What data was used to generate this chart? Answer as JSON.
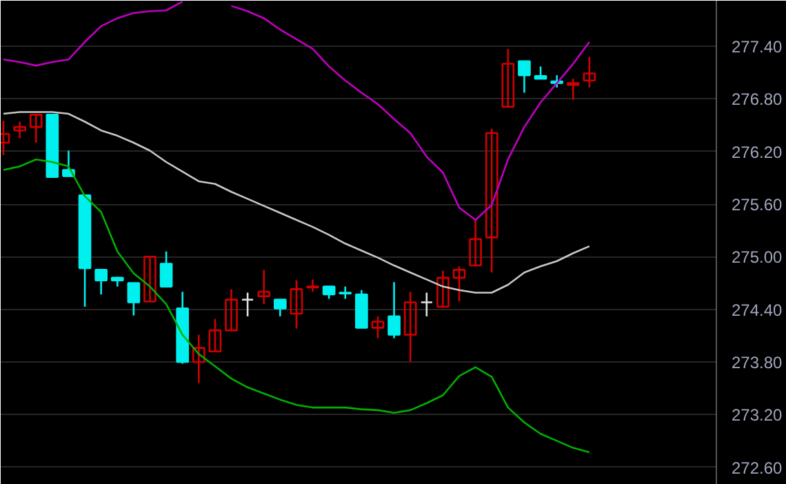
{
  "chart_data": {
    "type": "candlestick",
    "categories": [
      null,
      null,
      null,
      null,
      null,
      null,
      null,
      null,
      null,
      null,
      null,
      null,
      null,
      null,
      null,
      null,
      null,
      null,
      null,
      null,
      null,
      null,
      null,
      null,
      null,
      null,
      null,
      null,
      null,
      null,
      null,
      null,
      null,
      null,
      null,
      null,
      null
    ],
    "ohlc": [
      [
        276.3,
        276.55,
        276.16,
        276.4
      ],
      [
        276.44,
        276.54,
        276.35,
        276.48
      ],
      [
        276.48,
        276.63,
        276.3,
        276.62
      ],
      [
        276.62,
        276.62,
        275.91,
        275.91
      ],
      [
        275.99,
        276.21,
        275.92,
        275.92
      ],
      [
        275.7,
        275.7,
        274.43,
        274.87
      ],
      [
        274.85,
        274.85,
        274.57,
        274.73
      ],
      [
        274.76,
        274.77,
        274.66,
        274.73
      ],
      [
        274.7,
        274.7,
        274.33,
        274.48
      ],
      [
        274.49,
        275.0,
        274.49,
        275.0
      ],
      [
        274.92,
        275.06,
        274.65,
        274.66
      ],
      [
        274.41,
        274.6,
        273.78,
        273.8
      ],
      [
        273.8,
        274.11,
        273.56,
        273.96
      ],
      [
        273.92,
        274.29,
        273.92,
        274.16
      ],
      [
        274.16,
        274.63,
        274.16,
        274.51
      ],
      [
        274.51,
        274.59,
        274.32,
        274.51
      ],
      [
        274.55,
        274.85,
        274.46,
        274.6
      ],
      [
        274.51,
        274.51,
        274.32,
        274.41
      ],
      [
        274.35,
        274.73,
        274.18,
        274.63
      ],
      [
        274.65,
        274.74,
        274.6,
        274.66
      ],
      [
        274.66,
        274.66,
        274.52,
        274.57
      ],
      [
        274.59,
        274.66,
        274.52,
        274.58
      ],
      [
        274.57,
        274.62,
        274.19,
        274.19
      ],
      [
        274.19,
        274.32,
        274.07,
        274.26
      ],
      [
        274.32,
        274.71,
        274.07,
        274.11
      ],
      [
        274.11,
        274.6,
        273.8,
        274.48
      ],
      [
        274.48,
        274.59,
        274.32,
        274.48
      ],
      [
        274.43,
        274.84,
        274.43,
        274.76
      ],
      [
        274.76,
        274.89,
        274.49,
        274.85
      ],
      [
        274.9,
        275.42,
        274.9,
        275.2
      ],
      [
        275.22,
        276.46,
        274.82,
        276.41
      ],
      [
        276.71,
        277.37,
        276.71,
        277.2
      ],
      [
        277.23,
        277.23,
        276.87,
        277.07
      ],
      [
        277.06,
        277.17,
        277.03,
        277.03
      ],
      [
        277.0,
        277.07,
        276.93,
        276.98
      ],
      [
        276.96,
        277.03,
        276.79,
        276.98
      ],
      [
        277.01,
        277.28,
        276.93,
        277.09
      ]
    ],
    "colors": [
      "#d00000",
      "#d00000",
      "#d00000",
      "#00f0f0",
      "#00f0f0",
      "#00f0f0",
      "#00f0f0",
      "#00f0f0",
      "#00f0f0",
      "#d00000",
      "#00f0f0",
      "#00f0f0",
      "#d00000",
      "#d00000",
      "#d00000",
      "#e0e0e0",
      "#d00000",
      "#00f0f0",
      "#d00000",
      "#d00000",
      "#00f0f0",
      "#00f0f0",
      "#00f0f0",
      "#d00000",
      "#00f0f0",
      "#d00000",
      "#e0e0e0",
      "#d00000",
      "#d00000",
      "#d00000",
      "#d00000",
      "#d00000",
      "#00f0f0",
      "#00f0f0",
      "#00f0f0",
      "#d00000",
      "#d00000"
    ],
    "series": [
      {
        "type": "line",
        "color": "#c8c8c8",
        "values": [
          276.63,
          276.65,
          276.65,
          276.65,
          276.63,
          276.54,
          276.44,
          276.38,
          276.3,
          276.21,
          276.08,
          275.97,
          275.86,
          275.83,
          275.74,
          275.66,
          275.58,
          275.5,
          275.42,
          275.34,
          275.25,
          275.15,
          275.07,
          274.99,
          274.9,
          274.82,
          274.74,
          274.66,
          274.62,
          274.59,
          274.59,
          274.68,
          274.82,
          274.89,
          274.95,
          275.04,
          275.12
        ]
      },
      {
        "type": "line",
        "color": "#c000c0",
        "values": [
          277.25,
          277.22,
          277.18,
          277.22,
          277.25,
          277.45,
          277.63,
          277.72,
          277.78,
          277.8,
          277.81,
          277.91,
          null,
          null,
          277.86,
          277.8,
          277.72,
          277.59,
          277.48,
          277.37,
          277.17,
          277.01,
          276.87,
          276.74,
          276.57,
          276.41,
          276.14,
          275.96,
          275.56,
          275.42,
          275.59,
          276.11,
          276.48,
          276.76,
          276.98,
          277.2,
          277.45
        ]
      },
      {
        "type": "line",
        "color": "#00b000",
        "values": [
          275.99,
          276.03,
          276.11,
          276.08,
          276.03,
          275.69,
          275.51,
          275.06,
          274.81,
          274.66,
          274.46,
          274.11,
          273.89,
          273.75,
          273.61,
          273.51,
          273.44,
          273.37,
          273.31,
          273.28,
          273.28,
          273.28,
          273.26,
          273.25,
          273.22,
          273.25,
          273.33,
          273.42,
          273.64,
          273.74,
          273.63,
          273.28,
          273.11,
          272.98,
          272.9,
          272.82,
          272.77
        ]
      }
    ],
    "ylim": [
      272.4,
      277.92
    ],
    "yticks": [
      {
        "value": 272.6,
        "label": "272.60"
      },
      {
        "value": 273.2,
        "label": "273.20"
      },
      {
        "value": 273.8,
        "label": "273.80"
      },
      {
        "value": 274.4,
        "label": "274.40"
      },
      {
        "value": 275.0,
        "label": "275.00"
      },
      {
        "value": 275.6,
        "label": "275.60"
      },
      {
        "value": 276.2,
        "label": "276.20"
      },
      {
        "value": 276.8,
        "label": "276.80"
      },
      {
        "value": 277.4,
        "label": "277.40"
      }
    ],
    "grid": "y",
    "tick_labels": "y"
  }
}
